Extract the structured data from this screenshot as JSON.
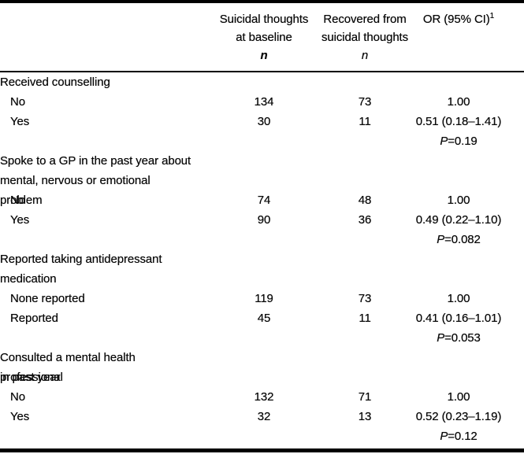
{
  "header": {
    "col2": {
      "line1": "Suicidal thoughts",
      "line2": "at baseline",
      "n": "n"
    },
    "col3": {
      "line1": "Recovered from",
      "line2": "suicidal thoughts",
      "n": "n"
    },
    "col4": {
      "label": "OR (95% CI)",
      "sup": "1"
    }
  },
  "sections": [
    {
      "title_lines": [
        "Received counselling"
      ],
      "rows": [
        {
          "label": "No",
          "baseline_n": "134",
          "recovered_n": "73",
          "or": "1.00"
        },
        {
          "label": "Yes",
          "baseline_n": "30",
          "recovered_n": "11",
          "or": "0.51 (0.18–1.41)"
        }
      ],
      "p_label": "P",
      "p_value": "=0.19"
    },
    {
      "title_lines": [
        "Spoke to a GP in the past year about",
        "mental, nervous or emotional problem"
      ],
      "rows": [
        {
          "label": "No",
          "baseline_n": "74",
          "recovered_n": "48",
          "or": "1.00"
        },
        {
          "label": "Yes",
          "baseline_n": "90",
          "recovered_n": "36",
          "or": "0.49 (0.22–1.10)"
        }
      ],
      "p_label": "P",
      "p_value": "=0.082"
    },
    {
      "title_lines": [
        "Reported taking antidepressant",
        "medication"
      ],
      "rows": [
        {
          "label": "None reported",
          "baseline_n": "119",
          "recovered_n": "73",
          "or": "1.00"
        },
        {
          "label": "Reported",
          "baseline_n": "45",
          "recovered_n": "11",
          "or": "0.41 (0.16–1.01)"
        }
      ],
      "p_label": "P",
      "p_value": "=0.053"
    },
    {
      "title_lines": [
        "Consulted a mental health professional",
        "in past year"
      ],
      "rows": [
        {
          "label": "No",
          "baseline_n": "132",
          "recovered_n": "71",
          "or": "1.00"
        },
        {
          "label": "Yes",
          "baseline_n": "32",
          "recovered_n": "13",
          "or": "0.52 (0.23–1.19)"
        }
      ],
      "p_label": "P",
      "p_value": "=0.12"
    }
  ]
}
